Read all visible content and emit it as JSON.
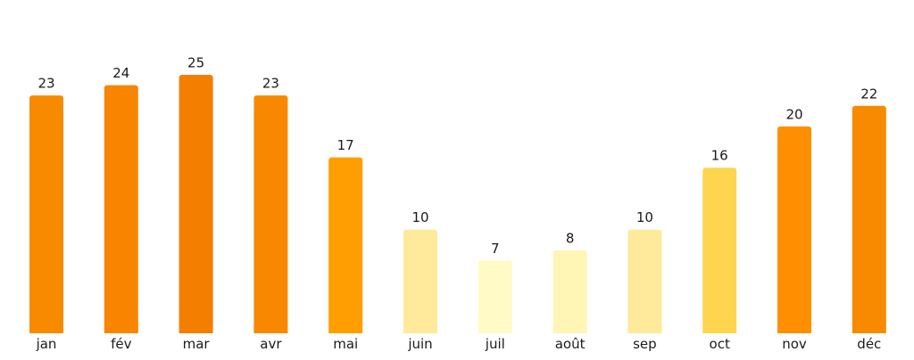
{
  "chart_data": {
    "type": "bar",
    "title": "",
    "xlabel": "",
    "ylabel": "",
    "ylim": [
      0,
      28.5
    ],
    "grid": false,
    "categories": [
      "jan",
      "fév",
      "mar",
      "avr",
      "mai",
      "juin",
      "juil",
      "août",
      "sep",
      "oct",
      "nov",
      "déc"
    ],
    "values": [
      23,
      24,
      25,
      23,
      17,
      10,
      7,
      8,
      10,
      16,
      20,
      22
    ],
    "value_labels": [
      "23",
      "24",
      "25",
      "23",
      "17",
      "10",
      "7",
      "8",
      "10",
      "16",
      "20",
      "22"
    ],
    "colors": [
      "#f88a00",
      "#f88400",
      "#f47e00",
      "#f88800",
      "#ff9e00",
      "#ffe99a",
      "#fffac6",
      "#fff5b5",
      "#ffe99a",
      "#ffd54f",
      "#fd8f00",
      "#f88a00"
    ]
  }
}
